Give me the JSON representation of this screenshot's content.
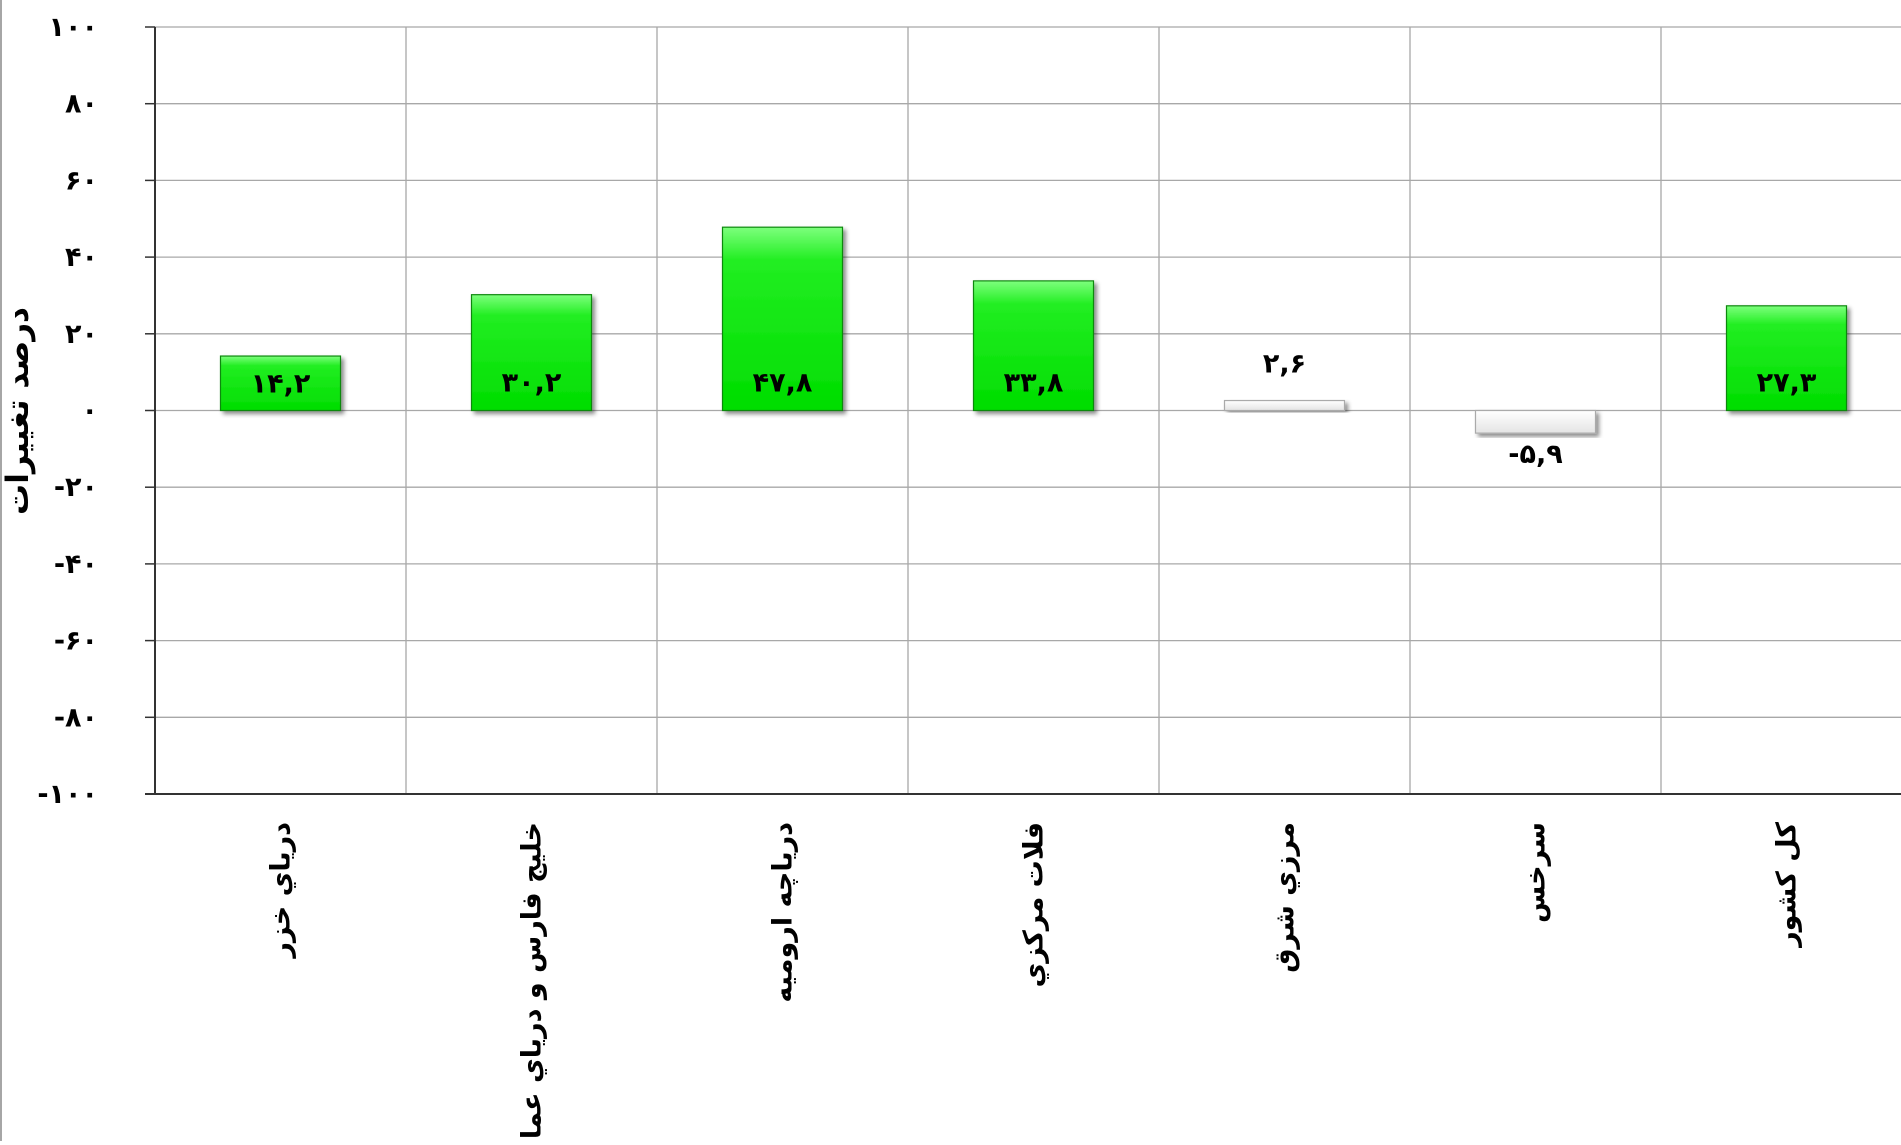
{
  "chart_data": {
    "type": "bar",
    "title": "",
    "xlabel": "",
    "ylabel": "درصد تغییرات",
    "categories": [
      "درياي خزر",
      "خليج فارس و درياي عمان",
      "درياچه اروميه",
      "فلات مركزي",
      "مرزي شرق",
      "سرخس",
      "كل كشور"
    ],
    "values": [
      14.2,
      30.2,
      47.8,
      33.8,
      2.6,
      -5.9,
      27.3
    ],
    "data_labels": [
      "۱۴,۲",
      "۳۰,۲",
      "۴۷,۸",
      "۳۳,۸",
      "۲,۶",
      "-۵,۹",
      "۲۷,۳"
    ],
    "ylim": [
      -100,
      100
    ],
    "yticks": [
      100,
      80,
      60,
      40,
      20,
      0,
      -20,
      -40,
      -60,
      -80,
      -100
    ],
    "ytick_labels": [
      "۱۰۰",
      "۸۰",
      "۶۰",
      "۴۰",
      "۲۰",
      "۰",
      "-۲۰",
      "-۴۰",
      "-۶۰",
      "-۸۰",
      "-۱۰۰"
    ],
    "grid": true,
    "legend": "none",
    "colors": {
      "bar_fill": "#33ee33",
      "bar_fill_light": "#88ff88",
      "bar_stroke": "#118811",
      "small_bar_fill": "#ffffff",
      "small_bar_stroke": "#aaaaaa",
      "grid": "#a8a8a8",
      "axis": "#333333",
      "text": "#000000"
    }
  }
}
